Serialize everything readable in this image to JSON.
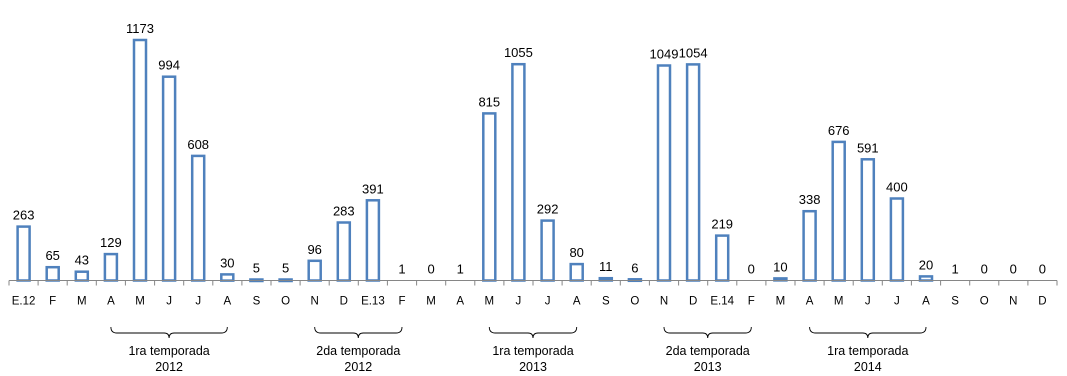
{
  "chart_data": {
    "type": "bar",
    "title": "",
    "xlabel": "",
    "ylabel": "",
    "ylim": [
      0,
      1200
    ],
    "grid": false,
    "legend": "none",
    "colors": {
      "bar_stroke": "#4F81BD",
      "bar_fill": "#FFFFFF",
      "axis": "#868686"
    },
    "categories": [
      "E.12",
      "F",
      "M",
      "A",
      "M",
      "J",
      "J",
      "A",
      "S",
      "O",
      "N",
      "D",
      "E.13",
      "F",
      "M",
      "A",
      "M",
      "J",
      "J",
      "A",
      "S",
      "O",
      "N",
      "D",
      "E.14",
      "F",
      "M",
      "A",
      "M",
      "J",
      "J",
      "A",
      "S",
      "O",
      "N",
      "D"
    ],
    "values": [
      263,
      65,
      43,
      129,
      1173,
      994,
      608,
      30,
      5,
      5,
      96,
      283,
      391,
      1,
      0,
      1,
      815,
      1055,
      292,
      80,
      11,
      6,
      1049,
      1054,
      219,
      0,
      10,
      338,
      676,
      591,
      400,
      20,
      1,
      0,
      0,
      0
    ],
    "value_labels": [
      "263",
      "65",
      "43",
      "129",
      "1173",
      "994",
      "608",
      "30",
      "5",
      "5",
      "96",
      "283",
      "391",
      "1",
      "0",
      "1",
      "815",
      "1055",
      "292",
      "80",
      "11",
      "6",
      "1049",
      "1054",
      "219",
      "0",
      "10",
      "338",
      "676",
      "591",
      "400",
      "20",
      "1",
      "0",
      "0",
      "0"
    ],
    "seasons": [
      {
        "line1": "1ra  temporada",
        "line2": "2012",
        "start": 3,
        "end": 7
      },
      {
        "line1": "2da  temporada",
        "line2": "2012",
        "start": 10,
        "end": 13
      },
      {
        "line1": "1ra  temporada",
        "line2": "2013",
        "start": 16,
        "end": 19
      },
      {
        "line1": "2da  temporada",
        "line2": "2013",
        "start": 22,
        "end": 25
      },
      {
        "line1": "1ra temporada",
        "line2": "2014",
        "start": 27,
        "end": 31
      }
    ]
  }
}
